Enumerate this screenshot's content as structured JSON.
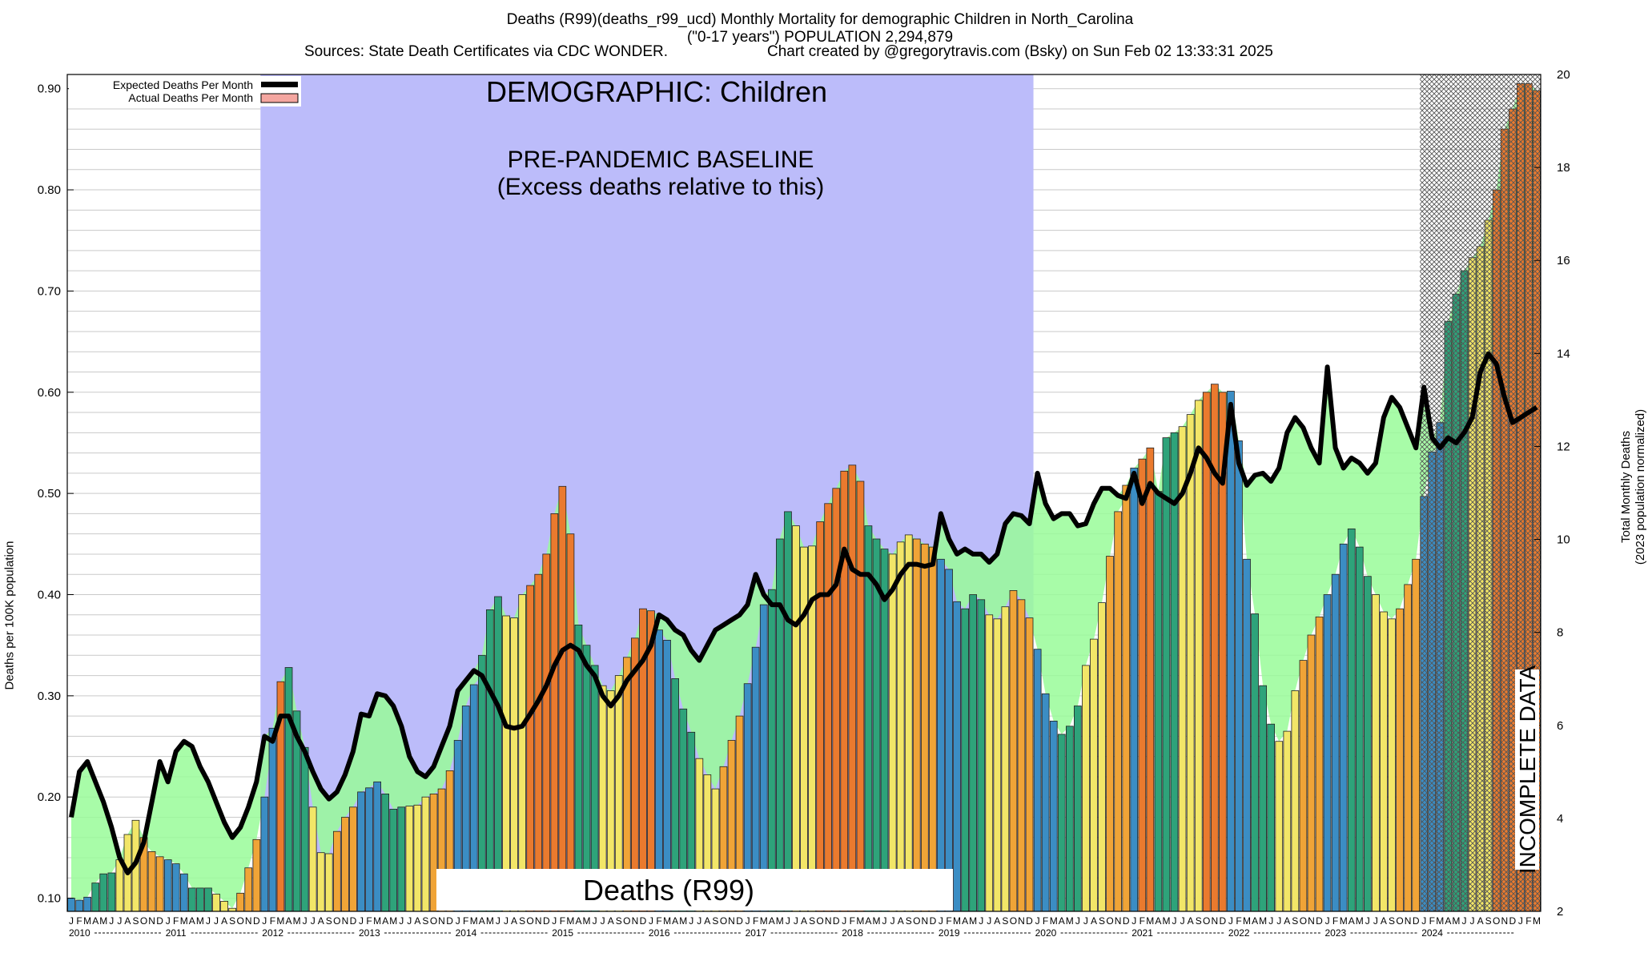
{
  "title": {
    "line1": "Deaths (R99)(deaths_r99_ucd) Monthly Mortality for demographic Children in North_Carolina",
    "line2": "(\"0-17 years\") POPULATION 2,294,879",
    "sources": "Sources: State Death Certificates via CDC WONDER.",
    "credit": "Chart created by @gregorytravis.com (Bsky) on Sun Feb 02 13:33:31 2025"
  },
  "labels": {
    "demographic": "DEMOGRAPHIC: Children",
    "baseline1": "PRE-PANDEMIC BASELINE",
    "baseline2": "(Excess deaths relative to this)",
    "cause_box": "Deaths (R99)",
    "incomplete": "INCOMPLETE DATA"
  },
  "colors": {
    "baseline_region": "#bcbcfa",
    "excess_fill": "#99fb99",
    "expected_line": "#000000",
    "actual_legend": "#f4a6a0",
    "quarter_colors": [
      "#3b8dc4",
      "#2ea37a",
      "#f2e668",
      "#f0a437"
    ],
    "hatch": "#555555"
  },
  "chart_data": {
    "type": "bar",
    "title": "Deaths (R99)(deaths_r99_ucd) Monthly Mortality for demographic Children in North_Carolina",
    "ylabel": "Deaths per 100K population",
    "y2label": "Total Monthly Deaths",
    "y2label_sub": "(2023 population normalized)",
    "ylim": [
      0.087,
      0.914
    ],
    "y2lim": [
      2,
      20
    ],
    "yticks": [
      "0.10",
      "0.20",
      "0.30",
      "0.40",
      "0.50",
      "0.60",
      "0.70",
      "0.80",
      "0.90"
    ],
    "y2ticks": [
      "2",
      "4",
      "6",
      "8",
      "10",
      "12",
      "14",
      "16",
      "18",
      "20"
    ],
    "grid": true,
    "legend_position": "top-left",
    "month_letters": [
      "J",
      "F",
      "M",
      "A",
      "M",
      "J",
      "J",
      "A",
      "S",
      "O",
      "N",
      "D"
    ],
    "years": [
      "2010",
      "2011",
      "2012",
      "2013",
      "2014",
      "2015",
      "2016",
      "2017",
      "2018",
      "2019",
      "2020",
      "2021",
      "2022",
      "2023",
      "2024"
    ],
    "start": "2010-01",
    "baseline_range": [
      "2012-01",
      "2019-12"
    ],
    "incomplete_from": "2024-01",
    "series": [
      {
        "name": "Actual Deaths Per Month",
        "values": [
          0.1,
          0.098,
          0.101,
          0.115,
          0.124,
          0.125,
          0.138,
          0.163,
          0.177,
          0.16,
          0.146,
          0.141,
          0.138,
          0.134,
          0.124,
          0.11,
          0.11,
          0.11,
          0.104,
          0.097,
          0.09,
          0.105,
          0.13,
          0.158,
          0.2,
          0.268,
          0.314,
          0.328,
          0.285,
          0.249,
          0.19,
          0.145,
          0.144,
          0.166,
          0.18,
          0.19,
          0.205,
          0.209,
          0.215,
          0.203,
          0.188,
          0.19,
          0.191,
          0.192,
          0.2,
          0.203,
          0.208,
          0.226,
          0.256,
          0.29,
          0.311,
          0.34,
          0.385,
          0.398,
          0.379,
          0.377,
          0.4,
          0.409,
          0.42,
          0.44,
          0.48,
          0.507,
          0.46,
          0.37,
          0.35,
          0.33,
          0.31,
          0.305,
          0.32,
          0.338,
          0.357,
          0.386,
          0.384,
          0.365,
          0.355,
          0.317,
          0.287,
          0.264,
          0.238,
          0.222,
          0.208,
          0.23,
          0.256,
          0.28,
          0.312,
          0.348,
          0.39,
          0.405,
          0.455,
          0.482,
          0.468,
          0.447,
          0.448,
          0.472,
          0.49,
          0.505,
          0.522,
          0.528,
          0.512,
          0.468,
          0.455,
          0.445,
          0.44,
          0.452,
          0.459,
          0.455,
          0.45,
          0.447,
          0.435,
          0.425,
          0.393,
          0.386,
          0.4,
          0.395,
          0.38,
          0.376,
          0.388,
          0.404,
          0.395,
          0.377,
          0.346,
          0.302,
          0.275,
          0.262,
          0.27,
          0.29,
          0.33,
          0.356,
          0.392,
          0.438,
          0.482,
          0.508,
          0.525,
          0.534,
          0.545,
          0.502,
          0.555,
          0.56,
          0.566,
          0.578,
          0.592,
          0.6,
          0.608,
          0.6,
          0.601,
          0.552,
          0.435,
          0.381,
          0.31,
          0.272,
          0.255,
          0.265,
          0.305,
          0.335,
          0.36,
          0.378,
          0.4,
          0.42,
          0.45,
          0.465,
          0.447,
          0.418,
          0.4,
          0.383,
          0.376,
          0.386,
          0.41,
          0.435,
          0.497,
          0.541,
          0.57,
          0.67,
          0.697,
          0.72,
          0.733,
          0.744,
          0.77,
          0.8,
          0.86,
          0.88,
          0.905,
          0.905,
          0.898
        ]
      },
      {
        "name": "Expected Deaths Per Month",
        "values": [
          0.18,
          0.225,
          0.235,
          0.215,
          0.195,
          0.17,
          0.14,
          0.125,
          0.135,
          0.155,
          0.195,
          0.235,
          0.215,
          0.245,
          0.255,
          0.25,
          0.23,
          0.215,
          0.195,
          0.175,
          0.16,
          0.17,
          0.19,
          0.215,
          0.26,
          0.255,
          0.28,
          0.28,
          0.26,
          0.245,
          0.225,
          0.208,
          0.198,
          0.205,
          0.222,
          0.245,
          0.282,
          0.28,
          0.302,
          0.3,
          0.29,
          0.27,
          0.24,
          0.225,
          0.22,
          0.23,
          0.25,
          0.27,
          0.305,
          0.315,
          0.325,
          0.32,
          0.305,
          0.29,
          0.27,
          0.268,
          0.27,
          0.282,
          0.295,
          0.31,
          0.33,
          0.345,
          0.35,
          0.345,
          0.33,
          0.32,
          0.3,
          0.29,
          0.3,
          0.315,
          0.325,
          0.335,
          0.35,
          0.38,
          0.375,
          0.365,
          0.36,
          0.345,
          0.335,
          0.35,
          0.365,
          0.37,
          0.375,
          0.38,
          0.39,
          0.42,
          0.4,
          0.39,
          0.39,
          0.375,
          0.37,
          0.38,
          0.395,
          0.4,
          0.4,
          0.41,
          0.445,
          0.425,
          0.42,
          0.42,
          0.41,
          0.395,
          0.405,
          0.42,
          0.43,
          0.43,
          0.428,
          0.43,
          0.48,
          0.455,
          0.44,
          0.445,
          0.44,
          0.44,
          0.432,
          0.44,
          0.47,
          0.48,
          0.478,
          0.47,
          0.52,
          0.49,
          0.475,
          0.48,
          0.48,
          0.468,
          0.47,
          0.49,
          0.505,
          0.505,
          0.498,
          0.495,
          0.52,
          0.49,
          0.51,
          0.5,
          0.495,
          0.49,
          0.5,
          0.52,
          0.545,
          0.535,
          0.52,
          0.51,
          0.588,
          0.53,
          0.508,
          0.518,
          0.52,
          0.512,
          0.525,
          0.56,
          0.575,
          0.565,
          0.545,
          0.53,
          0.625,
          0.545,
          0.525,
          0.535,
          0.53,
          0.52,
          0.53,
          0.575,
          0.595,
          0.585,
          0.565,
          0.545,
          0.605,
          0.555,
          0.545,
          0.555,
          0.55,
          0.56,
          0.575,
          0.62,
          0.638,
          0.628,
          0.595,
          0.57,
          0.575,
          0.58,
          0.585
        ]
      }
    ]
  }
}
